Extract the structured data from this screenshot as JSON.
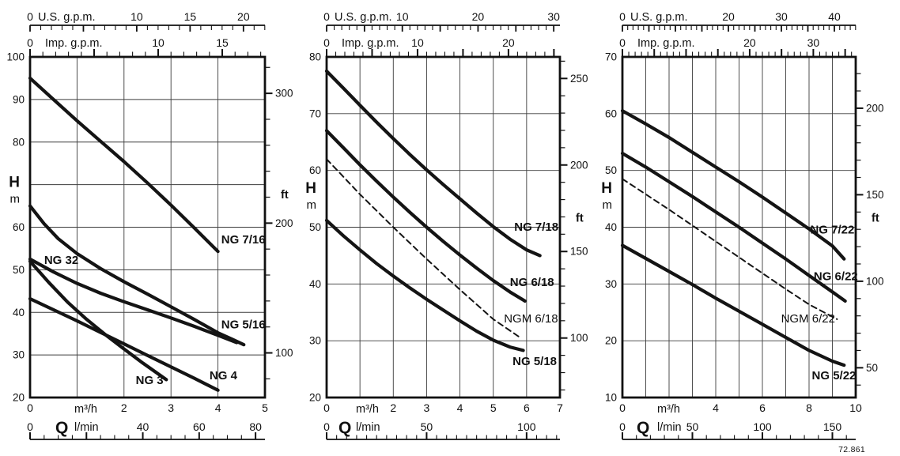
{
  "figure": {
    "code": "72.861"
  },
  "chart_data": [
    {
      "type": "line",
      "x_axes": {
        "us_gpm": {
          "label": "U.S. g.p.m.",
          "labeled_ticks": [
            0,
            10,
            15,
            20
          ]
        },
        "imp_gpm": {
          "label": "Imp. g.p.m.",
          "labeled_ticks": [
            0,
            10,
            15
          ]
        },
        "m3h": {
          "label": "m³/h",
          "max": 5,
          "labeled_ticks": [
            0,
            2,
            3,
            4,
            5
          ]
        },
        "lmin": {
          "label": "l/min",
          "labeled_ticks": [
            0,
            40,
            60,
            80
          ],
          "minor_step": 5,
          "major_step": 20
        }
      },
      "y_axes": {
        "h_m": {
          "label": "H",
          "unit": "m",
          "min": 20,
          "max": 100,
          "labeled_ticks": [
            100,
            90,
            80,
            60,
            50,
            40,
            30,
            20
          ],
          "title_at": 70
        },
        "ft": {
          "label": "ft",
          "labeled_ticks": [
            300,
            200,
            100
          ],
          "tick_step": 20,
          "label_at_m": 67.5
        }
      },
      "q_label": "Q",
      "series": [
        {
          "name": "NG 7/16",
          "style": "solid",
          "label_pos": [
            4.07,
            56.2
          ],
          "points": [
            [
              0,
              95
            ],
            [
              0.5,
              90
            ],
            [
              1,
              85
            ],
            [
              1.5,
              80.2
            ],
            [
              2,
              75.4
            ],
            [
              2.5,
              70.4
            ],
            [
              3,
              65.2
            ],
            [
              3.5,
              59.8
            ],
            [
              4,
              54.3
            ]
          ]
        },
        {
          "name": "NG 5/16",
          "style": "solid",
          "label_pos": [
            4.07,
            36.2
          ],
          "points": [
            [
              0,
              65
            ],
            [
              0.3,
              60.8
            ],
            [
              0.6,
              57.3
            ],
            [
              1,
              53.8
            ],
            [
              1.5,
              50.3
            ],
            [
              2,
              47.2
            ],
            [
              2.5,
              44.3
            ],
            [
              3,
              41.3
            ],
            [
              3.5,
              38.3
            ],
            [
              4,
              35.2
            ],
            [
              4.3,
              33.7
            ],
            [
              4.55,
              32.4
            ]
          ]
        },
        {
          "name": "NG 32",
          "style": "solid",
          "label_pos": [
            0.3,
            51.4
          ],
          "points": [
            [
              0,
              52.5
            ],
            [
              0.5,
              49.5
            ],
            [
              1,
              46.8
            ],
            [
              1.5,
              44.5
            ],
            [
              2,
              42.5
            ],
            [
              2.5,
              40.6
            ],
            [
              3,
              38.7
            ],
            [
              3.5,
              36.7
            ],
            [
              4,
              34.6
            ],
            [
              4.4,
              32.9
            ]
          ]
        },
        {
          "name": "NG 3",
          "style": "solid",
          "label_pos": [
            2.25,
            23.2
          ],
          "points": [
            [
              0,
              52
            ],
            [
              0.4,
              47
            ],
            [
              0.8,
              42.4
            ],
            [
              1.2,
              38.4
            ],
            [
              1.6,
              34.8
            ],
            [
              2,
              31.4
            ],
            [
              2.4,
              28.1
            ],
            [
              2.9,
              24.2
            ]
          ]
        },
        {
          "name": "NG 4",
          "style": "solid",
          "label_pos": [
            3.82,
            24.3
          ],
          "points": [
            [
              0,
              43.2
            ],
            [
              0.5,
              40.6
            ],
            [
              1,
              38
            ],
            [
              1.5,
              35.3
            ],
            [
              2,
              32.6
            ],
            [
              2.5,
              29.9
            ],
            [
              3,
              27.2
            ],
            [
              3.5,
              24.5
            ],
            [
              4,
              21.7
            ]
          ]
        }
      ]
    },
    {
      "type": "line",
      "x_axes": {
        "us_gpm": {
          "label": "U.S. g.p.m.",
          "labeled_ticks": [
            0,
            10,
            20,
            30
          ]
        },
        "imp_gpm": {
          "label": "Imp. g.p.m.",
          "labeled_ticks": [
            0,
            10,
            20
          ]
        },
        "m3h": {
          "label": "m³/h",
          "max": 7,
          "labeled_ticks": [
            0,
            2,
            3,
            4,
            5,
            6,
            7
          ]
        },
        "lmin": {
          "label": "l/min",
          "labeled_ticks": [
            0,
            50,
            100
          ],
          "minor_step": 5,
          "major_step": 50
        }
      },
      "y_axes": {
        "h_m": {
          "label": "H",
          "unit": "m",
          "min": 20,
          "max": 80,
          "labeled_ticks": [
            80,
            70,
            60,
            50,
            40,
            30,
            20
          ],
          "title_at": 56.5
        },
        "ft": {
          "label": "ft",
          "labeled_ticks": [
            250,
            200,
            150,
            100
          ],
          "tick_step": 10,
          "label_at_m": 51.5
        }
      },
      "q_label": "Q",
      "series": [
        {
          "name": "NG 7/18",
          "style": "solid",
          "label_pos": [
            5.63,
            49.4
          ],
          "points": [
            [
              0,
              77.5
            ],
            [
              0.5,
              74.5
            ],
            [
              1,
              71.5
            ],
            [
              1.5,
              68.5
            ],
            [
              2,
              65.6
            ],
            [
              2.5,
              62.8
            ],
            [
              3,
              60.1
            ],
            [
              3.5,
              57.5
            ],
            [
              4,
              55
            ],
            [
              4.5,
              52.5
            ],
            [
              5,
              50.1
            ],
            [
              5.5,
              47.9
            ],
            [
              6,
              46
            ],
            [
              6.4,
              45
            ]
          ]
        },
        {
          "name": "NG 6/18",
          "style": "solid",
          "label_pos": [
            5.5,
            39.6
          ],
          "points": [
            [
              0,
              67
            ],
            [
              0.5,
              64
            ],
            [
              1,
              61
            ],
            [
              1.5,
              58.1
            ],
            [
              2,
              55.3
            ],
            [
              2.5,
              52.6
            ],
            [
              3,
              50
            ],
            [
              3.5,
              47.5
            ],
            [
              4,
              45.1
            ],
            [
              4.5,
              42.8
            ],
            [
              5,
              40.6
            ],
            [
              5.5,
              38.6
            ],
            [
              5.95,
              37
            ]
          ]
        },
        {
          "name": "NGM 6/18",
          "style": "dashed",
          "label_pos": [
            5.32,
            33.2
          ],
          "points": [
            [
              0,
              62
            ],
            [
              1,
              55.8
            ],
            [
              2,
              50
            ],
            [
              3,
              44.4
            ],
            [
              4,
              39
            ],
            [
              5,
              33.8
            ],
            [
              5.8,
              30.6
            ]
          ]
        },
        {
          "name": "NG 5/18",
          "style": "solid",
          "label_pos": [
            5.58,
            25.7
          ],
          "points": [
            [
              0,
              51.2
            ],
            [
              0.5,
              48.5
            ],
            [
              1,
              46
            ],
            [
              1.5,
              43.6
            ],
            [
              2,
              41.4
            ],
            [
              2.5,
              39.3
            ],
            [
              3,
              37.3
            ],
            [
              3.5,
              35.4
            ],
            [
              4,
              33.5
            ],
            [
              4.5,
              31.7
            ],
            [
              5,
              30.1
            ],
            [
              5.5,
              28.9
            ],
            [
              5.9,
              28.3
            ]
          ]
        }
      ]
    },
    {
      "type": "line",
      "x_axes": {
        "us_gpm": {
          "label": "U.S. g.p.m.",
          "labeled_ticks": [
            0,
            20,
            30,
            40
          ]
        },
        "imp_gpm": {
          "label": "Imp. g.p.m.",
          "labeled_ticks": [
            0,
            20,
            30
          ]
        },
        "m3h": {
          "label": "m³/h",
          "max": 10,
          "labeled_ticks": [
            0,
            4,
            6,
            8,
            10
          ]
        },
        "lmin": {
          "label": "l/min",
          "labeled_ticks": [
            0,
            50,
            100,
            150
          ],
          "minor_step": 10,
          "major_step": 50
        }
      },
      "y_axes": {
        "h_m": {
          "label": "H",
          "unit": "m",
          "min": 10,
          "max": 70,
          "labeled_ticks": [
            70,
            60,
            50,
            40,
            30,
            20,
            10
          ],
          "title_at": 46.5
        },
        "ft": {
          "label": "ft",
          "labeled_ticks": [
            200,
            150,
            100,
            50
          ],
          "tick_step": 10,
          "label_at_m": 41.5
        }
      },
      "q_label": "Q",
      "series": [
        {
          "name": "NG 7/22",
          "style": "solid",
          "label_pos": [
            8.05,
            38.9
          ],
          "points": [
            [
              0,
              60.5
            ],
            [
              1,
              58.2
            ],
            [
              2,
              55.8
            ],
            [
              3,
              53.2
            ],
            [
              4,
              50.6
            ],
            [
              5,
              48
            ],
            [
              6,
              45.3
            ],
            [
              7,
              42.5
            ],
            [
              8,
              39.7
            ],
            [
              9,
              36.7
            ],
            [
              9.5,
              34.4
            ]
          ]
        },
        {
          "name": "NG 6/22",
          "style": "solid",
          "label_pos": [
            8.2,
            30.7
          ],
          "points": [
            [
              0,
              53
            ],
            [
              1,
              50.6
            ],
            [
              2,
              48
            ],
            [
              3,
              45.4
            ],
            [
              4,
              42.7
            ],
            [
              5,
              40
            ],
            [
              6,
              37.2
            ],
            [
              7,
              34.4
            ],
            [
              8,
              31.5
            ],
            [
              9,
              28.6
            ],
            [
              9.55,
              27
            ]
          ]
        },
        {
          "name": "NGM 6/22",
          "style": "dashed",
          "label_pos": [
            6.8,
            23.2
          ],
          "points": [
            [
              0,
              48.5
            ],
            [
              1,
              45.8
            ],
            [
              2,
              43.1
            ],
            [
              3,
              40.3
            ],
            [
              4,
              37.5
            ],
            [
              5,
              34.7
            ],
            [
              6,
              31.9
            ],
            [
              7,
              29.1
            ],
            [
              8,
              26.4
            ],
            [
              9.2,
              23.8
            ]
          ]
        },
        {
          "name": "NG 5/22",
          "style": "solid",
          "label_pos": [
            8.12,
            13.2
          ],
          "points": [
            [
              0,
              36.8
            ],
            [
              1,
              34.5
            ],
            [
              2,
              32.2
            ],
            [
              3,
              29.9
            ],
            [
              4,
              27.5
            ],
            [
              5,
              25.2
            ],
            [
              6,
              22.9
            ],
            [
              7,
              20.6
            ],
            [
              8,
              18.3
            ],
            [
              9,
              16.4
            ],
            [
              9.5,
              15.7
            ]
          ]
        }
      ]
    }
  ]
}
